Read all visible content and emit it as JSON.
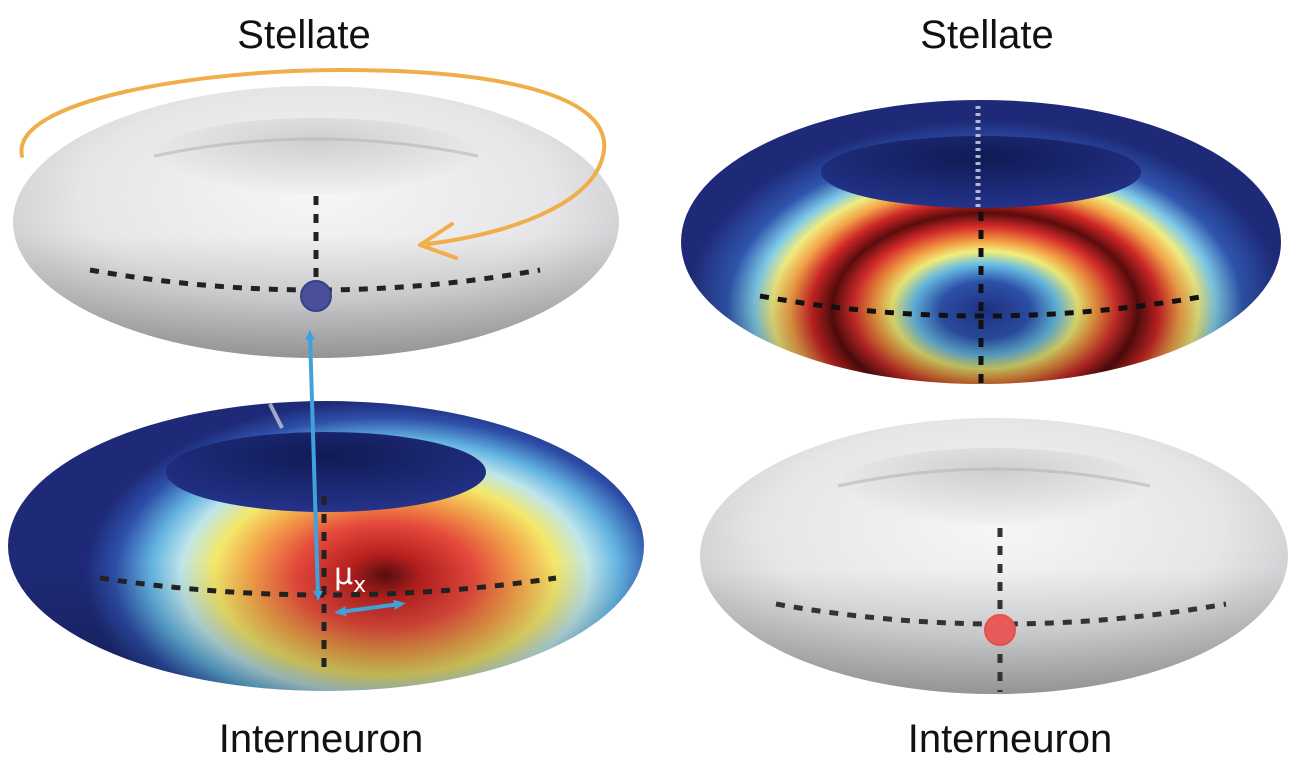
{
  "labels": {
    "top_left": "Stellate",
    "top_right": "Stellate",
    "bottom_left": "Interneuron",
    "bottom_right": "Interneuron",
    "mu": "μ",
    "mu_subscript": "x"
  },
  "colors": {
    "torus_gray": "#e9e9eb",
    "torus_dark_blue": "#1e2a78",
    "orbit_arrow": "#f0ae4a",
    "connection_arrow": "#3fa2db",
    "stellate_node": "#4a4f9a",
    "interneuron_node": "#e85a5a",
    "dotted_axes": "#222222"
  }
}
